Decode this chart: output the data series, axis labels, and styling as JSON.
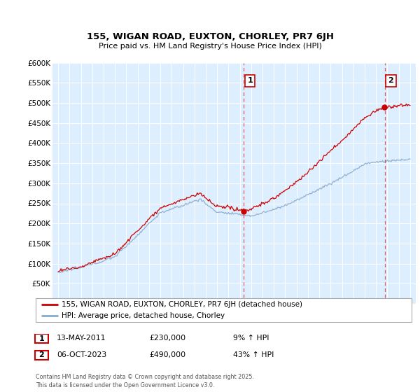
{
  "title": "155, WIGAN ROAD, EUXTON, CHORLEY, PR7 6JH",
  "subtitle": "Price paid vs. HM Land Registry's House Price Index (HPI)",
  "legend_line1": "155, WIGAN ROAD, EUXTON, CHORLEY, PR7 6JH (detached house)",
  "legend_line2": "HPI: Average price, detached house, Chorley",
  "annotation1_label": "1",
  "annotation1_date": "13-MAY-2011",
  "annotation1_price": 230000,
  "annotation1_hpi": "9% ↑ HPI",
  "annotation2_label": "2",
  "annotation2_date": "06-OCT-2023",
  "annotation2_price": 490000,
  "annotation2_hpi": "43% ↑ HPI",
  "footer": "Contains HM Land Registry data © Crown copyright and database right 2025.\nThis data is licensed under the Open Government Licence v3.0.",
  "ylim": [
    0,
    600000
  ],
  "yticks": [
    0,
    50000,
    100000,
    150000,
    200000,
    250000,
    300000,
    350000,
    400000,
    450000,
    500000,
    550000,
    600000
  ],
  "red_color": "#cc0000",
  "blue_color": "#88aacc",
  "bg_color": "#ddeeff",
  "grid_color": "#ffffff",
  "vline_color": "#dd4444",
  "annotation_box_color": "#cc0000",
  "sale1_year": 2011.36,
  "sale2_year": 2023.76,
  "sale1_price": 230000,
  "sale2_price": 490000
}
